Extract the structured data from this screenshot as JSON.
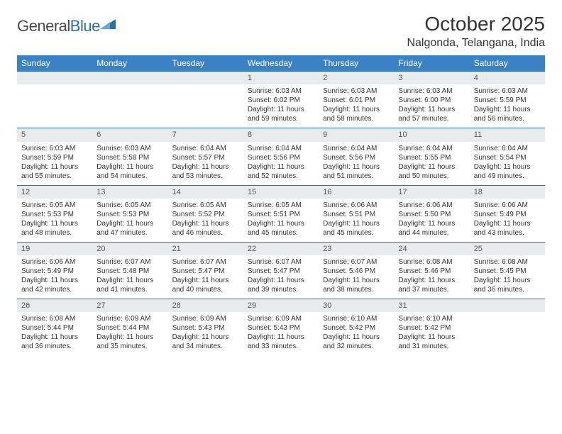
{
  "brand": {
    "part1": "General",
    "part2": "Blue"
  },
  "title": "October 2025",
  "location": "Nalgonda, Telangana, India",
  "colors": {
    "header_bg": "#3b82c4",
    "header_text": "#ffffff",
    "row_border": "#2f6fa8",
    "daynum_bg": "#e8ebee",
    "text": "#333333"
  },
  "day_headers": [
    "Sunday",
    "Monday",
    "Tuesday",
    "Wednesday",
    "Thursday",
    "Friday",
    "Saturday"
  ],
  "weeks": [
    [
      {
        "n": "",
        "sr": "",
        "ss": "",
        "dl": ""
      },
      {
        "n": "",
        "sr": "",
        "ss": "",
        "dl": ""
      },
      {
        "n": "",
        "sr": "",
        "ss": "",
        "dl": ""
      },
      {
        "n": "1",
        "sr": "Sunrise: 6:03 AM",
        "ss": "Sunset: 6:02 PM",
        "dl": "Daylight: 11 hours and 59 minutes."
      },
      {
        "n": "2",
        "sr": "Sunrise: 6:03 AM",
        "ss": "Sunset: 6:01 PM",
        "dl": "Daylight: 11 hours and 58 minutes."
      },
      {
        "n": "3",
        "sr": "Sunrise: 6:03 AM",
        "ss": "Sunset: 6:00 PM",
        "dl": "Daylight: 11 hours and 57 minutes."
      },
      {
        "n": "4",
        "sr": "Sunrise: 6:03 AM",
        "ss": "Sunset: 5:59 PM",
        "dl": "Daylight: 11 hours and 56 minutes."
      }
    ],
    [
      {
        "n": "5",
        "sr": "Sunrise: 6:03 AM",
        "ss": "Sunset: 5:59 PM",
        "dl": "Daylight: 11 hours and 55 minutes."
      },
      {
        "n": "6",
        "sr": "Sunrise: 6:03 AM",
        "ss": "Sunset: 5:58 PM",
        "dl": "Daylight: 11 hours and 54 minutes."
      },
      {
        "n": "7",
        "sr": "Sunrise: 6:04 AM",
        "ss": "Sunset: 5:57 PM",
        "dl": "Daylight: 11 hours and 53 minutes."
      },
      {
        "n": "8",
        "sr": "Sunrise: 6:04 AM",
        "ss": "Sunset: 5:56 PM",
        "dl": "Daylight: 11 hours and 52 minutes."
      },
      {
        "n": "9",
        "sr": "Sunrise: 6:04 AM",
        "ss": "Sunset: 5:56 PM",
        "dl": "Daylight: 11 hours and 51 minutes."
      },
      {
        "n": "10",
        "sr": "Sunrise: 6:04 AM",
        "ss": "Sunset: 5:55 PM",
        "dl": "Daylight: 11 hours and 50 minutes."
      },
      {
        "n": "11",
        "sr": "Sunrise: 6:04 AM",
        "ss": "Sunset: 5:54 PM",
        "dl": "Daylight: 11 hours and 49 minutes."
      }
    ],
    [
      {
        "n": "12",
        "sr": "Sunrise: 6:05 AM",
        "ss": "Sunset: 5:53 PM",
        "dl": "Daylight: 11 hours and 48 minutes."
      },
      {
        "n": "13",
        "sr": "Sunrise: 6:05 AM",
        "ss": "Sunset: 5:53 PM",
        "dl": "Daylight: 11 hours and 47 minutes."
      },
      {
        "n": "14",
        "sr": "Sunrise: 6:05 AM",
        "ss": "Sunset: 5:52 PM",
        "dl": "Daylight: 11 hours and 46 minutes."
      },
      {
        "n": "15",
        "sr": "Sunrise: 6:05 AM",
        "ss": "Sunset: 5:51 PM",
        "dl": "Daylight: 11 hours and 45 minutes."
      },
      {
        "n": "16",
        "sr": "Sunrise: 6:06 AM",
        "ss": "Sunset: 5:51 PM",
        "dl": "Daylight: 11 hours and 45 minutes."
      },
      {
        "n": "17",
        "sr": "Sunrise: 6:06 AM",
        "ss": "Sunset: 5:50 PM",
        "dl": "Daylight: 11 hours and 44 minutes."
      },
      {
        "n": "18",
        "sr": "Sunrise: 6:06 AM",
        "ss": "Sunset: 5:49 PM",
        "dl": "Daylight: 11 hours and 43 minutes."
      }
    ],
    [
      {
        "n": "19",
        "sr": "Sunrise: 6:06 AM",
        "ss": "Sunset: 5:49 PM",
        "dl": "Daylight: 11 hours and 42 minutes."
      },
      {
        "n": "20",
        "sr": "Sunrise: 6:07 AM",
        "ss": "Sunset: 5:48 PM",
        "dl": "Daylight: 11 hours and 41 minutes."
      },
      {
        "n": "21",
        "sr": "Sunrise: 6:07 AM",
        "ss": "Sunset: 5:47 PM",
        "dl": "Daylight: 11 hours and 40 minutes."
      },
      {
        "n": "22",
        "sr": "Sunrise: 6:07 AM",
        "ss": "Sunset: 5:47 PM",
        "dl": "Daylight: 11 hours and 39 minutes."
      },
      {
        "n": "23",
        "sr": "Sunrise: 6:07 AM",
        "ss": "Sunset: 5:46 PM",
        "dl": "Daylight: 11 hours and 38 minutes."
      },
      {
        "n": "24",
        "sr": "Sunrise: 6:08 AM",
        "ss": "Sunset: 5:46 PM",
        "dl": "Daylight: 11 hours and 37 minutes."
      },
      {
        "n": "25",
        "sr": "Sunrise: 6:08 AM",
        "ss": "Sunset: 5:45 PM",
        "dl": "Daylight: 11 hours and 36 minutes."
      }
    ],
    [
      {
        "n": "26",
        "sr": "Sunrise: 6:08 AM",
        "ss": "Sunset: 5:44 PM",
        "dl": "Daylight: 11 hours and 36 minutes."
      },
      {
        "n": "27",
        "sr": "Sunrise: 6:09 AM",
        "ss": "Sunset: 5:44 PM",
        "dl": "Daylight: 11 hours and 35 minutes."
      },
      {
        "n": "28",
        "sr": "Sunrise: 6:09 AM",
        "ss": "Sunset: 5:43 PM",
        "dl": "Daylight: 11 hours and 34 minutes."
      },
      {
        "n": "29",
        "sr": "Sunrise: 6:09 AM",
        "ss": "Sunset: 5:43 PM",
        "dl": "Daylight: 11 hours and 33 minutes."
      },
      {
        "n": "30",
        "sr": "Sunrise: 6:10 AM",
        "ss": "Sunset: 5:42 PM",
        "dl": "Daylight: 11 hours and 32 minutes."
      },
      {
        "n": "31",
        "sr": "Sunrise: 6:10 AM",
        "ss": "Sunset: 5:42 PM",
        "dl": "Daylight: 11 hours and 31 minutes."
      },
      {
        "n": "",
        "sr": "",
        "ss": "",
        "dl": ""
      }
    ]
  ]
}
